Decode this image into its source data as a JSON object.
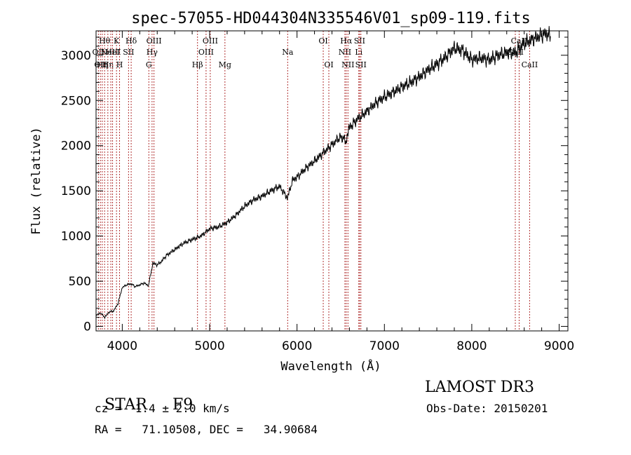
{
  "chart_data": {
    "type": "line",
    "title": "spec-57055-HD044304N335546V01_sp09-119.fits",
    "xlabel": "Wavelength (Å)",
    "ylabel": "Flux (relative)",
    "xlim": [
      3700,
      9100
    ],
    "ylim": [
      -50,
      3270
    ],
    "x_ticks": [
      4000,
      5000,
      6000,
      7000,
      8000,
      9000
    ],
    "y_ticks": [
      0,
      500,
      1000,
      1500,
      2000,
      2500,
      3000
    ],
    "grid": false,
    "series": [
      {
        "name": "flux",
        "x": [
          3700,
          3750,
          3800,
          3850,
          3900,
          3950,
          4000,
          4050,
          4100,
          4150,
          4200,
          4250,
          4300,
          4350,
          4400,
          4450,
          4500,
          4600,
          4700,
          4800,
          4900,
          5000,
          5100,
          5200,
          5300,
          5400,
          5500,
          5600,
          5700,
          5800,
          5890,
          5950,
          6000,
          6100,
          6200,
          6300,
          6400,
          6500,
          6563,
          6600,
          6700,
          6800,
          6900,
          7000,
          7100,
          7200,
          7300,
          7400,
          7500,
          7600,
          7700,
          7800,
          7900,
          8000,
          8100,
          8200,
          8300,
          8400,
          8500,
          8600,
          8700,
          8800,
          8850,
          8900
        ],
        "y": [
          120,
          150,
          100,
          160,
          170,
          250,
          430,
          460,
          470,
          440,
          460,
          480,
          450,
          700,
          680,
          720,
          780,
          850,
          920,
          960,
          1000,
          1080,
          1100,
          1150,
          1230,
          1330,
          1400,
          1440,
          1500,
          1550,
          1420,
          1620,
          1650,
          1750,
          1830,
          1920,
          2010,
          2100,
          2050,
          2200,
          2300,
          2380,
          2470,
          2540,
          2590,
          2650,
          2700,
          2760,
          2840,
          2900,
          2980,
          3080,
          3050,
          2950,
          2970,
          2950,
          3000,
          3030,
          3030,
          3130,
          3180,
          3220,
          3240,
          3210
        ]
      }
    ],
    "lines": [
      {
        "wavelength": 3727,
        "label": "OII",
        "row": 2
      },
      {
        "wavelength": 3750,
        "label": "OII",
        "row": 3
      },
      {
        "wavelength": 3771,
        "label": "Hη",
        "row": 3
      },
      {
        "wavelength": 3798,
        "label": "Hθ",
        "row": 1
      },
      {
        "wavelength": 3835,
        "label": "Hη",
        "row": 3
      },
      {
        "wavelength": 3869,
        "label": "NeIII",
        "row": 2
      },
      {
        "wavelength": 3889,
        "label": "HeI",
        "row": 2
      },
      {
        "wavelength": 3934,
        "label": "K",
        "row": 1
      },
      {
        "wavelength": 3969,
        "label": "H",
        "row": 3
      },
      {
        "wavelength": 4072,
        "label": "SII",
        "row": 2
      },
      {
        "wavelength": 4102,
        "label": "Hδ",
        "row": 1
      },
      {
        "wavelength": 4304,
        "label": "G",
        "row": 3
      },
      {
        "wavelength": 4341,
        "label": "Hγ",
        "row": 2
      },
      {
        "wavelength": 4363,
        "label": "OIII",
        "row": 1
      },
      {
        "wavelength": 4861,
        "label": "Hβ",
        "row": 3
      },
      {
        "wavelength": 4959,
        "label": "OIII",
        "row": 2
      },
      {
        "wavelength": 5007,
        "label": "OIII",
        "row": 1
      },
      {
        "wavelength": 5175,
        "label": "Mg",
        "row": 3
      },
      {
        "wavelength": 5893,
        "label": "Na",
        "row": 2
      },
      {
        "wavelength": 6300,
        "label": "OI",
        "row": 1
      },
      {
        "wavelength": 6364,
        "label": "OI",
        "row": 3
      },
      {
        "wavelength": 6548,
        "label": "NII",
        "row": 2
      },
      {
        "wavelength": 6563,
        "label": "Hα",
        "row": 1
      },
      {
        "wavelength": 6583,
        "label": "NII",
        "row": 3
      },
      {
        "wavelength": 6707,
        "label": "Li",
        "row": 2
      },
      {
        "wavelength": 6716,
        "label": "SII",
        "row": 1
      },
      {
        "wavelength": 6731,
        "label": "SII",
        "row": 3
      },
      {
        "wavelength": 8498,
        "label": "CaII",
        "row": 2
      },
      {
        "wavelength": 8542,
        "label": "CaII",
        "row": 1
      },
      {
        "wavelength": 8662,
        "label": "CaII",
        "row": 3
      }
    ]
  },
  "footer": {
    "object_type": "STAR",
    "spectral_class": "F9",
    "survey": "LAMOST DR3",
    "redshift": "cz =  1.4 ± 2.0 km/s",
    "obs_date": "Obs-Date: 20150201",
    "coordinates": "RA =   71.10508, DEC =   34.90684"
  }
}
